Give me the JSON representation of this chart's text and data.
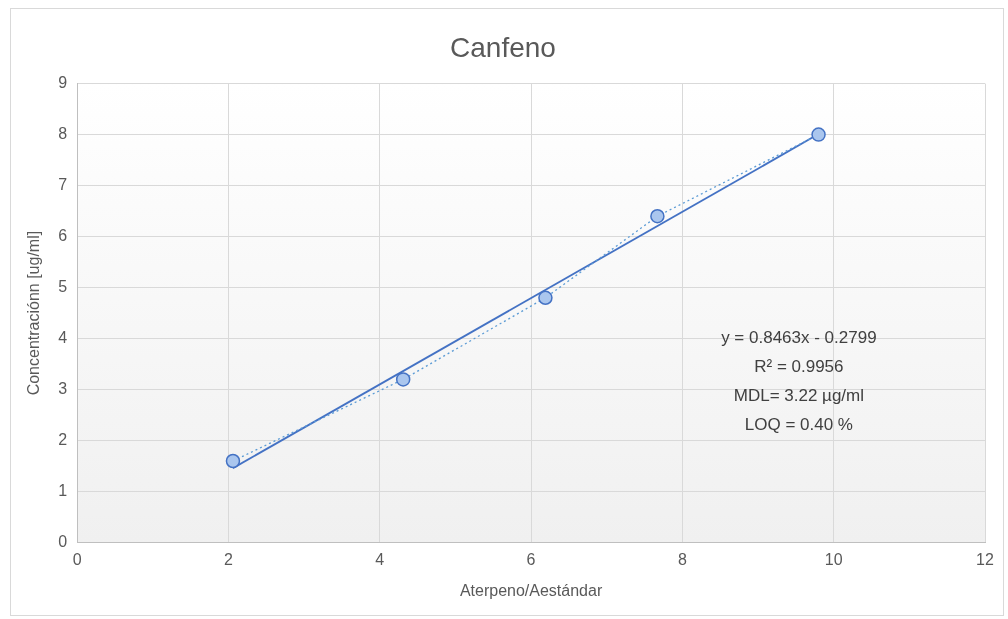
{
  "chart_data": {
    "type": "scatter",
    "title": "Canfeno",
    "xlabel": "Aterpeno/Aestándar",
    "ylabel": "Concentraciónn [ug/ml]",
    "xlim": [
      0,
      12
    ],
    "xticks": [
      0,
      2,
      4,
      6,
      8,
      10,
      12
    ],
    "ylim": [
      0,
      9
    ],
    "yticks": [
      0,
      1,
      2,
      3,
      4,
      5,
      6,
      7,
      8,
      9
    ],
    "grid": true,
    "legend": false,
    "series": [
      {
        "type": "line",
        "color": "#5b9bd5",
        "line_style": "dotted",
        "marker": "circle",
        "x": [
          2.06,
          4.31,
          6.19,
          7.67,
          9.8
        ],
        "values": [
          1.6,
          3.2,
          4.8,
          6.4,
          8.0
        ]
      },
      {
        "type": "line",
        "color": "#4472c4",
        "line_style": "solid",
        "x": [
          2.06,
          9.8
        ],
        "values": [
          1.46,
          8.01
        ]
      }
    ],
    "annotations": [
      "y = 0.8463x - 0.2799",
      "R² = 0.9956",
      "MDL= 3.22 µg/ml",
      "LOQ = 0.40 %"
    ]
  }
}
